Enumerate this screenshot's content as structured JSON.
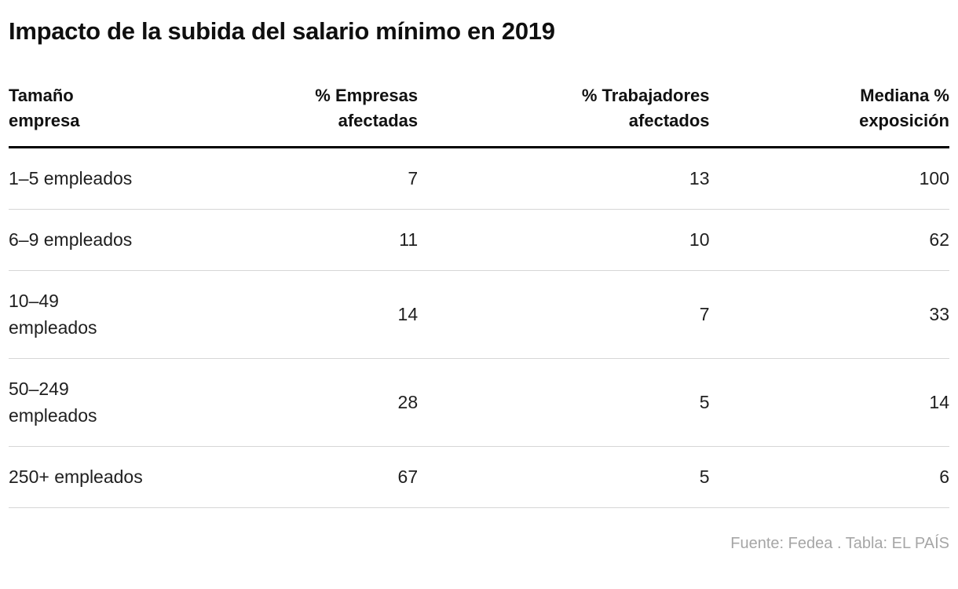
{
  "title": "Impacto de la subida del salario mínimo en 2019",
  "colors": {
    "background": "#ffffff",
    "title_text": "#0f0f0f",
    "body_text": "#1f1f1f",
    "header_rule": "#000000",
    "row_rule": "#d6d6d6",
    "footer_text": "#a6a6a6"
  },
  "chart_data": {
    "type": "table",
    "title": "Impacto de la subida del salario mínimo en 2019",
    "columns": [
      {
        "label": "Tamaño empresa",
        "lines": [
          "Tamaño",
          "empresa"
        ],
        "align": "left"
      },
      {
        "label": "% Empresas afectadas",
        "lines": [
          "% Empresas",
          "afectadas"
        ],
        "align": "right"
      },
      {
        "label": "% Trabajadores afectados",
        "lines": [
          "% Trabajadores",
          "afectados"
        ],
        "align": "right"
      },
      {
        "label": "Mediana % exposición",
        "lines": [
          "Mediana %",
          "exposición"
        ],
        "align": "right"
      }
    ],
    "rows": [
      {
        "label": "1–5 empleados",
        "label_lines": [
          "1–5 empleados"
        ],
        "values": [
          7,
          13,
          100
        ]
      },
      {
        "label": "6–9 empleados",
        "label_lines": [
          "6–9 empleados"
        ],
        "values": [
          11,
          10,
          62
        ]
      },
      {
        "label": "10–49 empleados",
        "label_lines": [
          "10–49",
          "empleados"
        ],
        "values": [
          14,
          7,
          33
        ]
      },
      {
        "label": "50–249 empleados",
        "label_lines": [
          "50–249",
          "empleados"
        ],
        "values": [
          28,
          5,
          14
        ]
      },
      {
        "label": "250+ empleados",
        "label_lines": [
          "250+ empleados"
        ],
        "values": [
          67,
          5,
          6
        ]
      }
    ]
  },
  "footer": {
    "source_label": "Fuente: ",
    "source_link": "Fedea",
    "credit": " . Tabla: EL PAÍS"
  }
}
